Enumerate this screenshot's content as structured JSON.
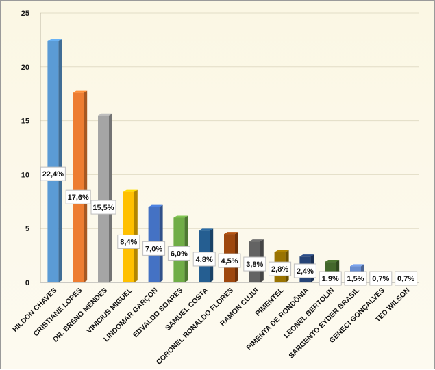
{
  "chart_data": {
    "type": "bar",
    "title": "",
    "xlabel": "",
    "ylabel": "",
    "ylim": [
      0,
      25
    ],
    "yticks": [
      0,
      5,
      10,
      15,
      20,
      25
    ],
    "grid": true,
    "legend": "none",
    "categories": [
      "HILDON CHAVES",
      "CRISTIANE LOPES",
      "DR. BRENO MENDES",
      "VINICIUS MIGUEL",
      "LINDOMAR GARÇON",
      "EDVALDO SOARES",
      "SAMUEL COSTA",
      "CORONEL RONALDO FLORES",
      "RAMON CUJUI",
      "PIMENTEL",
      "PIMENTA DE RONDÔNIA",
      "LEONEL BERTOLIN",
      "SARGENTO EYDER BRASIL",
      "GENECI GONÇALVES",
      "TED WILSON"
    ],
    "values": [
      22.4,
      17.6,
      15.5,
      8.4,
      7.0,
      6.0,
      4.8,
      4.5,
      3.8,
      2.8,
      2.4,
      1.9,
      1.5,
      0.7,
      0.7
    ],
    "data_labels": [
      "22,4%",
      "17,6%",
      "15,5%",
      "8,4%",
      "7,0%",
      "6,0%",
      "4,8%",
      "4,5%",
      "3,8%",
      "2,8%",
      "2,4%",
      "1,9%",
      "1,5%",
      "0,7%",
      "0,7%"
    ],
    "colors": [
      "#5b9bd5",
      "#ed7d31",
      "#a5a5a5",
      "#ffc000",
      "#4472c4",
      "#70ad47",
      "#255e91",
      "#9e480e",
      "#636363",
      "#997300",
      "#264478",
      "#43682b",
      "#698ed0",
      "#f1975a",
      "#b7b7b7"
    ]
  }
}
